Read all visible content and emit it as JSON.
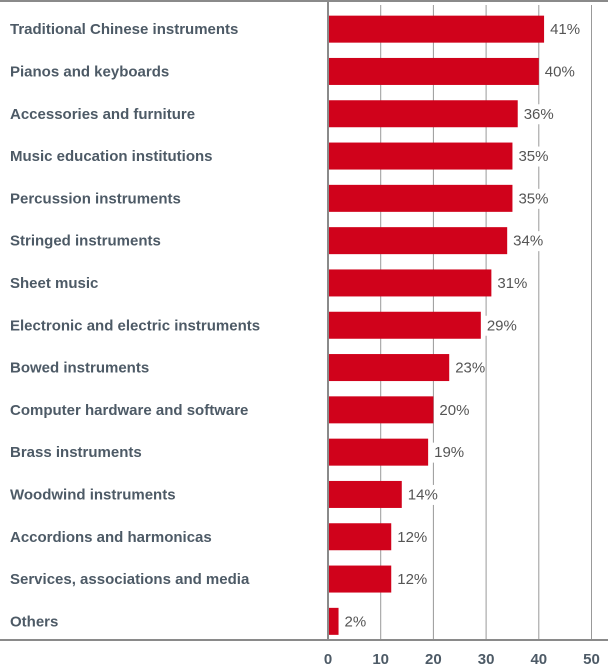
{
  "chart_data": {
    "type": "bar",
    "orientation": "horizontal",
    "categories": [
      "Traditional Chinese instruments",
      "Pianos and keyboards",
      "Accessories and furniture",
      "Music education institutions",
      "Percussion instruments",
      "Stringed instruments",
      "Sheet music",
      "Electronic and electric instruments",
      "Bowed instruments",
      "Computer hardware and software",
      "Brass instruments",
      "Woodwind instruments",
      "Accordions and harmonicas",
      "Services, associations and media",
      "Others"
    ],
    "values": [
      41,
      40,
      36,
      35,
      35,
      34,
      31,
      29,
      23,
      20,
      19,
      14,
      12,
      12,
      2
    ],
    "value_labels": [
      "41%",
      "40%",
      "36%",
      "35%",
      "35%",
      "34%",
      "31%",
      "29%",
      "23%",
      "20%",
      "19%",
      "14%",
      "12%",
      "12%",
      "2%"
    ],
    "x_ticks": [
      "0",
      "10",
      "20",
      "30",
      "40",
      "50"
    ],
    "xlim": [
      0,
      50
    ],
    "grid": true,
    "bar_color": "#d0021b",
    "grid_color": "#999999",
    "text_color": "#4d5a66"
  }
}
